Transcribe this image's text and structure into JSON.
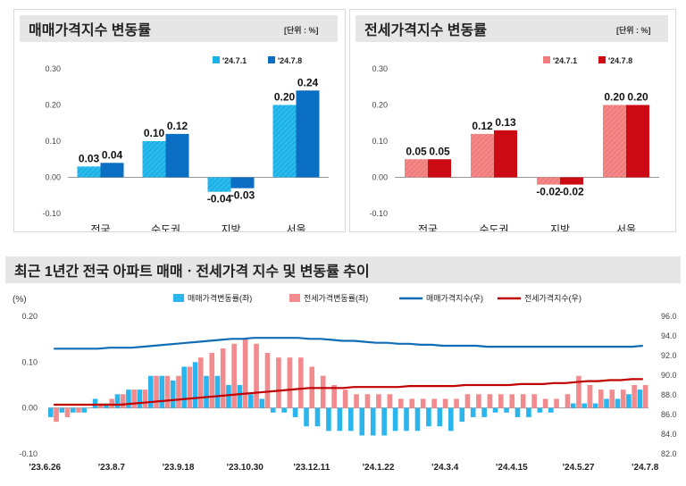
{
  "chart_data": [
    {
      "type": "bar",
      "title": "매매가격지수 변동률",
      "unit_label": "[단위 : %]",
      "categories": [
        "전국",
        "수도권",
        "지방",
        "서울"
      ],
      "series": [
        {
          "name": "'24.7.1",
          "values": [
            0.03,
            0.1,
            -0.04,
            0.2
          ],
          "labels": [
            "0.03",
            "0.10",
            "-0.04",
            "0.20"
          ],
          "color": "#1ab2e8"
        },
        {
          "name": "'24.7.8",
          "values": [
            0.04,
            0.12,
            -0.03,
            0.24
          ],
          "labels": [
            "0.04",
            "0.12",
            "-0.03",
            "0.24"
          ],
          "color": "#0a6fc2"
        }
      ],
      "ylim": [
        -0.1,
        0.3
      ],
      "yticks": [
        "0.30",
        "0.20",
        "0.10",
        "0.00",
        "-0.10"
      ],
      "ytick_values": [
        0.3,
        0.2,
        0.1,
        0.0,
        -0.1
      ]
    },
    {
      "type": "bar",
      "title": "전세가격지수 변동률",
      "unit_label": "[단위 : %]",
      "categories": [
        "전국",
        "수도권",
        "지방",
        "서울"
      ],
      "series": [
        {
          "name": "'24.7.1",
          "values": [
            0.05,
            0.12,
            -0.02,
            0.2
          ],
          "labels": [
            "0.05",
            "0.12",
            "-0.02",
            "0.20"
          ],
          "color": "#f07c7c"
        },
        {
          "name": "'24.7.8",
          "values": [
            0.05,
            0.13,
            -0.02,
            0.2
          ],
          "labels": [
            "0.05",
            "0.13",
            "-0.02",
            "0.20"
          ],
          "color": "#cc0a14"
        }
      ],
      "ylim": [
        -0.1,
        0.3
      ],
      "yticks": [
        "0.30",
        "0.20",
        "0.10",
        "0.00",
        "-0.10"
      ],
      "ytick_values": [
        0.3,
        0.2,
        0.1,
        0.0,
        -0.1
      ]
    },
    {
      "type": "bar+line",
      "title": "최근 1년간 전국 아파트 매매ㆍ전세가격 지수 및 변동률 추이",
      "left_unit": "(%)",
      "legend": [
        "매매가격변동률(좌)",
        "전세가격변동률(좌)",
        "매매가격지수(우)",
        "전세가격지수(우)"
      ],
      "colors": {
        "sale_bar": "#2ab6ec",
        "jeonse_bar": "#f28b8e",
        "sale_line": "#0f6cb6",
        "jeonse_line": "#c00000"
      },
      "x_tick_labels": [
        "'23.6.26",
        "'23.8.7",
        "'23.9.18",
        "'23.10.30",
        "'23.12.11",
        "'24.1.22",
        "'24.3.4",
        "'24.4.15",
        "'24.5.27",
        "'24.7.8"
      ],
      "left_ylim": [
        -0.1,
        0.2
      ],
      "left_yticks": [
        "0.20",
        "0.10",
        "0.00",
        "-0.10"
      ],
      "left_ytick_values": [
        0.2,
        0.1,
        0.0,
        -0.1
      ],
      "right_ylim": [
        82.0,
        96.0
      ],
      "right_yticks": [
        "96.0",
        "94.0",
        "92.0",
        "90.0",
        "88.0",
        "86.0",
        "84.0",
        "82.0"
      ],
      "right_ytick_values": [
        96,
        94,
        92,
        90,
        88,
        86,
        84,
        82
      ],
      "sale_change": [
        -0.02,
        -0.01,
        -0.01,
        -0.01,
        0.02,
        0.01,
        0.03,
        0.04,
        0.04,
        0.07,
        0.07,
        0.06,
        0.09,
        0.1,
        0.07,
        0.07,
        0.05,
        0.05,
        0.03,
        0.02,
        -0.01,
        -0.01,
        -0.02,
        -0.04,
        -0.04,
        -0.05,
        -0.05,
        -0.05,
        -0.06,
        -0.06,
        -0.06,
        -0.05,
        -0.05,
        -0.05,
        -0.04,
        -0.04,
        -0.05,
        -0.03,
        -0.02,
        -0.02,
        -0.01,
        -0.01,
        -0.02,
        -0.02,
        -0.01,
        -0.01,
        0.0,
        0.01,
        0.01,
        0.01,
        0.02,
        0.02,
        0.03,
        0.04
      ],
      "jeonse_change": [
        -0.03,
        -0.02,
        -0.01,
        0.0,
        0.01,
        0.02,
        0.03,
        0.04,
        0.04,
        0.07,
        0.07,
        0.07,
        0.09,
        0.11,
        0.12,
        0.13,
        0.14,
        0.15,
        0.14,
        0.12,
        0.11,
        0.11,
        0.11,
        0.09,
        0.07,
        0.05,
        0.04,
        0.03,
        0.03,
        0.03,
        0.03,
        0.02,
        0.02,
        0.02,
        0.02,
        0.02,
        0.02,
        0.03,
        0.03,
        0.03,
        0.03,
        0.03,
        0.03,
        0.03,
        0.02,
        0.02,
        0.03,
        0.07,
        0.05,
        0.04,
        0.04,
        0.04,
        0.05,
        0.05
      ],
      "sale_index": [
        92.7,
        92.7,
        92.7,
        92.7,
        92.7,
        92.8,
        92.8,
        92.8,
        92.9,
        93.0,
        93.1,
        93.2,
        93.3,
        93.4,
        93.5,
        93.6,
        93.7,
        93.7,
        93.8,
        93.8,
        93.8,
        93.8,
        93.8,
        93.7,
        93.7,
        93.6,
        93.5,
        93.5,
        93.4,
        93.3,
        93.3,
        93.2,
        93.2,
        93.1,
        93.1,
        93.0,
        93.0,
        93.0,
        93.0,
        92.9,
        92.9,
        92.9,
        92.9,
        92.9,
        92.9,
        92.9,
        92.9,
        92.9,
        92.9,
        92.9,
        92.9,
        92.9,
        92.9,
        93.0
      ],
      "jeonse_index": [
        87.0,
        87.0,
        87.0,
        87.0,
        87.0,
        87.0,
        87.0,
        87.1,
        87.2,
        87.3,
        87.4,
        87.5,
        87.6,
        87.7,
        87.8,
        87.9,
        88.0,
        88.1,
        88.2,
        88.3,
        88.4,
        88.5,
        88.6,
        88.7,
        88.7,
        88.7,
        88.7,
        88.8,
        88.8,
        88.8,
        88.8,
        88.8,
        88.9,
        88.9,
        88.9,
        88.9,
        88.9,
        89.0,
        89.0,
        89.0,
        89.0,
        89.0,
        89.1,
        89.1,
        89.1,
        89.2,
        89.2,
        89.3,
        89.4,
        89.4,
        89.5,
        89.5,
        89.6,
        89.6
      ]
    }
  ]
}
